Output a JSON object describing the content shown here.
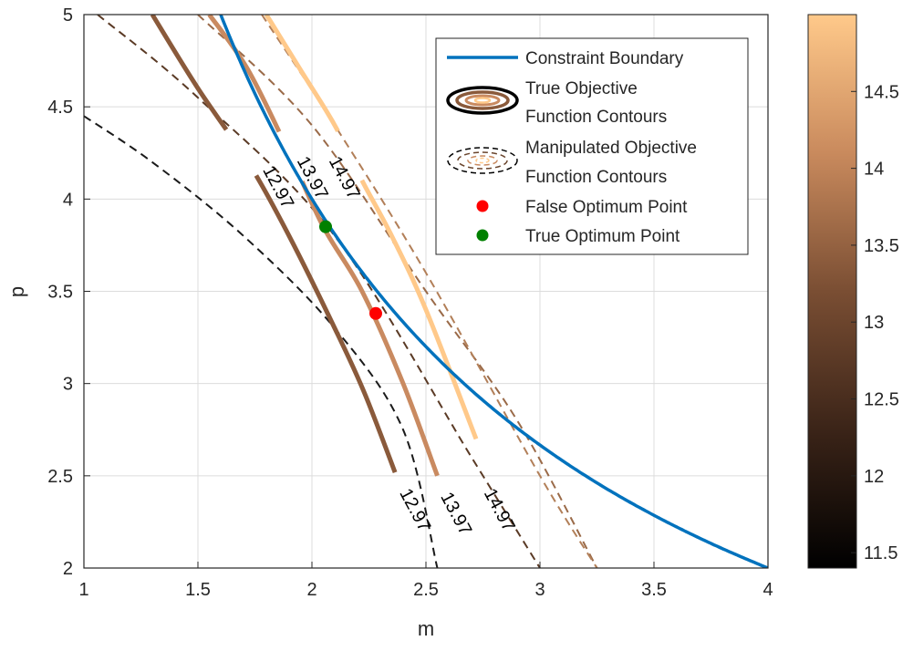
{
  "chart_data": {
    "type": "line",
    "xlabel": "m",
    "ylabel": "p",
    "xlim": [
      1,
      4
    ],
    "ylim": [
      2,
      5
    ],
    "xticks": [
      "1",
      "1.5",
      "2",
      "2.5",
      "3",
      "3.5",
      "4"
    ],
    "yticks": [
      "2",
      "2.5",
      "3",
      "3.5",
      "4",
      "4.5",
      "5"
    ],
    "grid": true,
    "legend_position": "top-right",
    "legend": [
      {
        "key": "constraint",
        "label": "Constraint Boundary"
      },
      {
        "key": "true_contours",
        "label": "True Objective Function Contours",
        "lines": [
          "True Objective",
          "Function Contours"
        ]
      },
      {
        "key": "manip_contours",
        "label": "Manipulated Objective Function Contours",
        "lines": [
          "Manipulated Objective",
          "Function Contours"
        ]
      },
      {
        "key": "false_opt",
        "label": "False Optimum Point"
      },
      {
        "key": "true_opt",
        "label": "True Optimum Point"
      }
    ],
    "colorbar": {
      "range": [
        11.4,
        15.0
      ],
      "ticks": [
        "11.5",
        "12",
        "12.5",
        "13",
        "13.5",
        "14",
        "14.5"
      ],
      "tick_values": [
        11.5,
        12,
        12.5,
        13,
        13.5,
        14,
        14.5
      ]
    },
    "constraint_boundary": {
      "type": "m*p = 8",
      "color": "#0072BD"
    },
    "true_contours": [
      {
        "level": "12.97",
        "color": "#8a5a3b",
        "points": [
          [
            1.3,
            5.0
          ],
          [
            1.5,
            4.6
          ],
          [
            1.72,
            4.2
          ],
          [
            1.9,
            3.8
          ],
          [
            2.1,
            3.3
          ],
          [
            2.23,
            2.95
          ],
          [
            2.37,
            2.5
          ]
        ],
        "label_pos": [
          1.83,
          4.05
        ],
        "label_pos2": [
          2.43,
          2.3
        ]
      },
      {
        "level": "13.97",
        "color": "#c98a60",
        "points": [
          [
            1.55,
            5.0
          ],
          [
            1.72,
            4.7
          ],
          [
            1.9,
            4.25
          ],
          [
            2.05,
            3.85
          ],
          [
            2.22,
            3.5
          ],
          [
            2.4,
            3.0
          ],
          [
            2.55,
            2.5
          ]
        ],
        "label_pos": [
          1.98,
          4.1
        ],
        "label_pos2": [
          2.61,
          2.28
        ]
      },
      {
        "level": "14.97",
        "color": "#ffc98a",
        "points": [
          [
            1.8,
            5.0
          ],
          [
            1.95,
            4.7
          ],
          [
            2.1,
            4.4
          ],
          [
            2.22,
            4.1
          ],
          [
            2.35,
            3.8
          ],
          [
            2.5,
            3.4
          ],
          [
            2.72,
            2.7
          ]
        ],
        "label_pos": [
          2.12,
          4.1
        ],
        "label_pos2": [
          2.8,
          2.3
        ]
      }
    ],
    "manipulated_contours": [
      {
        "level": "12.97",
        "color": "#1a1a1a",
        "points": [
          [
            1.0,
            4.45
          ],
          [
            1.3,
            4.2
          ],
          [
            1.7,
            3.8
          ],
          [
            2.1,
            3.3
          ],
          [
            2.4,
            2.75
          ],
          [
            2.55,
            2.0
          ]
        ]
      },
      {
        "level": "13.97",
        "color": "#5a3a25",
        "points": [
          [
            1.06,
            5.0
          ],
          [
            1.5,
            4.55
          ],
          [
            2.1,
            3.8
          ],
          [
            2.7,
            2.6
          ],
          [
            3.0,
            2.0
          ]
        ]
      },
      {
        "level": "14.97",
        "color": "#9a6a48",
        "points": [
          [
            1.5,
            5.0
          ],
          [
            2.0,
            4.4
          ],
          [
            2.5,
            3.5
          ],
          [
            2.9,
            2.8
          ],
          [
            3.25,
            2.0
          ]
        ]
      },
      {
        "level": "",
        "color": "#b27f58",
        "points": [
          [
            1.78,
            5.0
          ],
          [
            2.1,
            4.4
          ],
          [
            2.5,
            3.6
          ],
          [
            3.0,
            2.5
          ],
          [
            3.25,
            2.0
          ]
        ]
      }
    ],
    "points": [
      {
        "name": "False Optimum Point",
        "x": 2.28,
        "y": 3.38,
        "color": "#ff0000"
      },
      {
        "name": "True Optimum Point",
        "x": 2.06,
        "y": 3.85,
        "color": "#008000"
      }
    ]
  }
}
